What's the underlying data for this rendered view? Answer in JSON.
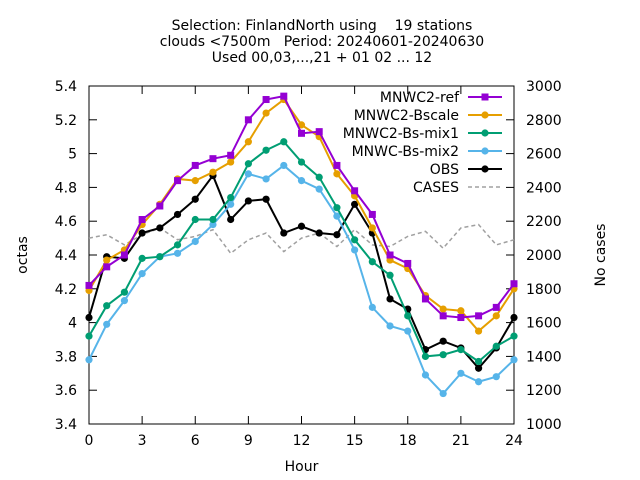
{
  "chart_data": {
    "type": "line",
    "title_lines": [
      "Selection: FinlandNorth using    19 stations",
      "clouds <7500m   Period: 20240601-20240630",
      "Used 00,03,...,21 + 01 02 ... 12"
    ],
    "xlabel": "Hour",
    "ylabel": "octas",
    "y2label": "No cases",
    "xlim": [
      0,
      24
    ],
    "ylim": [
      3.4,
      5.4
    ],
    "y2lim": [
      1000,
      3000
    ],
    "xticks": [
      0,
      3,
      6,
      9,
      12,
      15,
      18,
      21,
      24
    ],
    "yticks": [
      "3.4",
      "3.6",
      "3.8",
      "4",
      "4.2",
      "4.4",
      "4.6",
      "4.8",
      "5",
      "5.2",
      "5.4"
    ],
    "y2ticks": [
      "1000",
      "1200",
      "1400",
      "1600",
      "1800",
      "2000",
      "2200",
      "2400",
      "2600",
      "2800",
      "3000"
    ],
    "grid": false,
    "legend_position": "top-right",
    "x": [
      0,
      1,
      2,
      3,
      4,
      5,
      6,
      7,
      8,
      9,
      10,
      11,
      12,
      13,
      14,
      15,
      16,
      17,
      18,
      19,
      20,
      21,
      22,
      23,
      24
    ],
    "series": [
      {
        "name": "MNWC2-ref",
        "color": "#9400d3",
        "marker": "square",
        "values": [
          4.22,
          4.33,
          4.4,
          4.61,
          4.69,
          4.84,
          4.93,
          4.97,
          4.99,
          5.2,
          5.32,
          5.34,
          5.12,
          5.13,
          4.93,
          4.78,
          4.64,
          4.4,
          4.35,
          4.14,
          4.04,
          4.03,
          4.04,
          4.09,
          4.23
        ]
      },
      {
        "name": "MNWC2-Bscale",
        "color": "#e69f00",
        "marker": "circle",
        "values": [
          4.19,
          4.37,
          4.43,
          4.58,
          4.7,
          4.85,
          4.84,
          4.89,
          4.95,
          5.07,
          5.24,
          5.32,
          5.17,
          5.1,
          4.88,
          4.75,
          4.56,
          4.37,
          4.32,
          4.16,
          4.08,
          4.07,
          3.95,
          4.04,
          4.2
        ]
      },
      {
        "name": "MNWC2-Bs-mix1",
        "color": "#009e73",
        "marker": "circle",
        "values": [
          3.92,
          4.1,
          4.18,
          4.38,
          4.39,
          4.46,
          4.61,
          4.61,
          4.74,
          4.94,
          5.02,
          5.07,
          4.95,
          4.86,
          4.68,
          4.49,
          4.36,
          4.28,
          4.04,
          3.8,
          3.81,
          3.84,
          3.77,
          3.86,
          3.92
        ]
      },
      {
        "name": "MNWC-Bs-mix2",
        "color": "#56b4e9",
        "marker": "circle",
        "values": [
          3.78,
          3.99,
          4.13,
          4.29,
          4.39,
          4.41,
          4.48,
          4.58,
          4.7,
          4.88,
          4.85,
          4.93,
          4.84,
          4.79,
          4.63,
          4.43,
          4.09,
          3.98,
          3.95,
          3.69,
          3.58,
          3.7,
          3.65,
          3.68,
          3.78
        ]
      },
      {
        "name": "OBS",
        "color": "#000000",
        "marker": "circle",
        "values": [
          4.03,
          4.39,
          4.38,
          4.53,
          4.56,
          4.64,
          4.73,
          4.87,
          4.61,
          4.72,
          4.73,
          4.53,
          4.57,
          4.53,
          4.52,
          4.7,
          4.53,
          4.14,
          4.08,
          3.84,
          3.89,
          3.85,
          3.73,
          3.85,
          4.03
        ]
      },
      {
        "name": "CASES",
        "color": "#a0a0a0",
        "dashed": true,
        "axis": "y2",
        "values": [
          2100,
          2120,
          2060,
          2120,
          2160,
          2090,
          2110,
          2150,
          2010,
          2090,
          2130,
          2020,
          2100,
          2130,
          2050,
          2150,
          2060,
          2050,
          2110,
          2140,
          2040,
          2160,
          2180,
          2060,
          2090
        ]
      }
    ]
  }
}
